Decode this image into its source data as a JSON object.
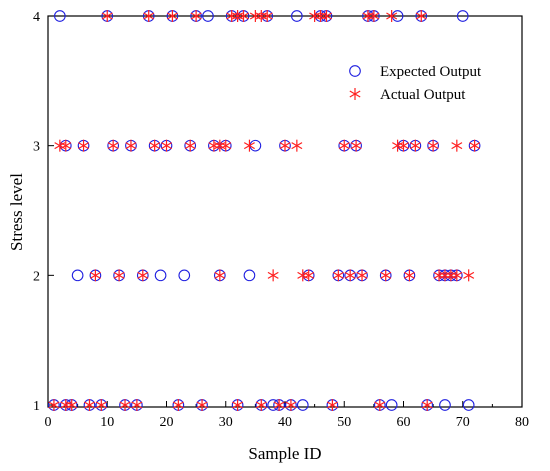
{
  "chart_data": {
    "type": "scatter",
    "xlabel": "Sample ID",
    "ylabel": "Stress level",
    "xlim": [
      0,
      80
    ],
    "ylim": [
      1,
      4
    ],
    "xticks": [
      0,
      10,
      20,
      30,
      40,
      50,
      60,
      70,
      80
    ],
    "yticks": [
      1,
      2,
      3,
      4
    ],
    "grid": false,
    "legend_position": "top-right",
    "series": [
      {
        "name": "Expected Output",
        "marker": "circle",
        "color": "#2020e0",
        "points": [
          [
            2,
            4
          ],
          [
            10,
            4
          ],
          [
            17,
            4
          ],
          [
            21,
            4
          ],
          [
            25,
            4
          ],
          [
            27,
            4
          ],
          [
            31,
            4
          ],
          [
            33,
            4
          ],
          [
            37,
            4
          ],
          [
            42,
            4
          ],
          [
            46,
            4
          ],
          [
            47,
            4
          ],
          [
            54,
            4
          ],
          [
            55,
            4
          ],
          [
            59,
            4
          ],
          [
            63,
            4
          ],
          [
            70,
            4
          ],
          [
            3,
            3
          ],
          [
            6,
            3
          ],
          [
            11,
            3
          ],
          [
            14,
            3
          ],
          [
            18,
            3
          ],
          [
            20,
            3
          ],
          [
            24,
            3
          ],
          [
            28,
            3
          ],
          [
            30,
            3
          ],
          [
            35,
            3
          ],
          [
            40,
            3
          ],
          [
            50,
            3
          ],
          [
            52,
            3
          ],
          [
            60,
            3
          ],
          [
            62,
            3
          ],
          [
            65,
            3
          ],
          [
            72,
            3
          ],
          [
            5,
            2
          ],
          [
            8,
            2
          ],
          [
            12,
            2
          ],
          [
            16,
            2
          ],
          [
            19,
            2
          ],
          [
            23,
            2
          ],
          [
            29,
            2
          ],
          [
            34,
            2
          ],
          [
            44,
            2
          ],
          [
            49,
            2
          ],
          [
            51,
            2
          ],
          [
            53,
            2
          ],
          [
            57,
            2
          ],
          [
            61,
            2
          ],
          [
            66,
            2
          ],
          [
            67,
            2
          ],
          [
            68,
            2
          ],
          [
            69,
            2
          ],
          [
            1,
            1
          ],
          [
            3,
            1
          ],
          [
            4,
            1
          ],
          [
            7,
            1
          ],
          [
            9,
            1
          ],
          [
            13,
            1
          ],
          [
            15,
            1
          ],
          [
            22,
            1
          ],
          [
            26,
            1
          ],
          [
            32,
            1
          ],
          [
            36,
            1
          ],
          [
            38,
            1
          ],
          [
            39,
            1
          ],
          [
            41,
            1
          ],
          [
            43,
            1
          ],
          [
            48,
            1
          ],
          [
            56,
            1
          ],
          [
            58,
            1
          ],
          [
            64,
            1
          ],
          [
            67,
            1
          ],
          [
            71,
            1
          ]
        ]
      },
      {
        "name": "Actual Output",
        "marker": "asterisk",
        "color": "#ff2020",
        "points": [
          [
            10,
            4
          ],
          [
            17,
            4
          ],
          [
            21,
            4
          ],
          [
            25,
            4
          ],
          [
            31,
            4
          ],
          [
            32,
            4
          ],
          [
            33,
            4
          ],
          [
            35,
            4
          ],
          [
            36,
            4
          ],
          [
            37,
            4
          ],
          [
            45,
            4
          ],
          [
            46,
            4
          ],
          [
            47,
            4
          ],
          [
            54,
            4
          ],
          [
            55,
            4
          ],
          [
            58,
            4
          ],
          [
            63,
            4
          ],
          [
            2,
            3
          ],
          [
            3,
            3
          ],
          [
            6,
            3
          ],
          [
            11,
            3
          ],
          [
            14,
            3
          ],
          [
            18,
            3
          ],
          [
            20,
            3
          ],
          [
            24,
            3
          ],
          [
            28,
            3
          ],
          [
            29,
            3
          ],
          [
            30,
            3
          ],
          [
            34,
            3
          ],
          [
            40,
            3
          ],
          [
            42,
            3
          ],
          [
            50,
            3
          ],
          [
            52,
            3
          ],
          [
            59,
            3
          ],
          [
            60,
            3
          ],
          [
            62,
            3
          ],
          [
            65,
            3
          ],
          [
            69,
            3
          ],
          [
            72,
            3
          ],
          [
            8,
            2
          ],
          [
            12,
            2
          ],
          [
            16,
            2
          ],
          [
            29,
            2
          ],
          [
            38,
            2
          ],
          [
            43,
            2
          ],
          [
            44,
            2
          ],
          [
            49,
            2
          ],
          [
            51,
            2
          ],
          [
            53,
            2
          ],
          [
            57,
            2
          ],
          [
            61,
            2
          ],
          [
            66,
            2
          ],
          [
            67,
            2
          ],
          [
            68,
            2
          ],
          [
            69,
            2
          ],
          [
            71,
            2
          ],
          [
            1,
            1
          ],
          [
            3,
            1
          ],
          [
            4,
            1
          ],
          [
            7,
            1
          ],
          [
            9,
            1
          ],
          [
            13,
            1
          ],
          [
            15,
            1
          ],
          [
            22,
            1
          ],
          [
            26,
            1
          ],
          [
            32,
            1
          ],
          [
            36,
            1
          ],
          [
            39,
            1
          ],
          [
            41,
            1
          ],
          [
            48,
            1
          ],
          [
            56,
            1
          ],
          [
            64,
            1
          ]
        ]
      }
    ]
  }
}
